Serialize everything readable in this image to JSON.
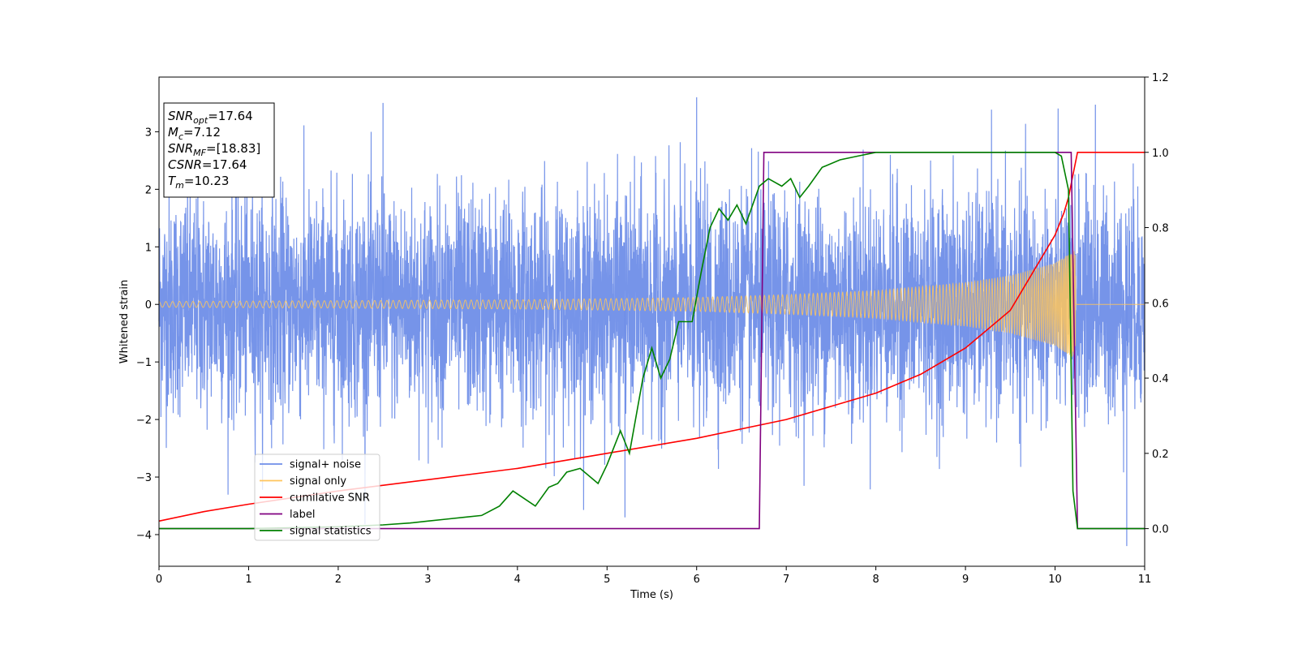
{
  "chart_data": {
    "type": "line",
    "xlabel": "Time (s)",
    "ylabel": "Whitened strain",
    "xlim": [
      0,
      11
    ],
    "ylim": [
      -4.55,
      3.95
    ],
    "y2lim": [
      -0.1,
      1.2
    ],
    "x_ticks": [
      0,
      1,
      2,
      3,
      4,
      5,
      6,
      7,
      8,
      9,
      10,
      11
    ],
    "y_ticks": [
      -4,
      -3,
      -2,
      -1,
      0,
      1,
      2,
      3
    ],
    "y2_ticks": [
      0.0,
      0.2,
      0.4,
      0.6,
      0.8,
      1.0,
      1.2
    ],
    "y2_tick_labels": [
      "0.0",
      "0.2",
      "0.4",
      "0.6",
      "0.8",
      "1.0",
      "1.2"
    ],
    "grid": false,
    "legend_position": "lower-left",
    "info_box": {
      "lines": [
        {
          "sym": "SNR",
          "sub": "opt",
          "value": "=17.64"
        },
        {
          "sym": "M",
          "sub": "c",
          "value": "=7.12"
        },
        {
          "sym": "SNR",
          "sub": "MF",
          "value": "=[18.83]"
        },
        {
          "sym": "CSNR",
          "sub": "",
          "value": "=17.64"
        },
        {
          "sym": "T",
          "sub": "m",
          "value": "=10.23"
        }
      ]
    },
    "series": [
      {
        "name": "signal+ noise",
        "color": "#6f8ee8",
        "axis": "left",
        "description_range": [
          -4.2,
          3.6
        ],
        "peaks": [
          [
            2.5,
            3.5
          ],
          [
            5.2,
            -3.7
          ],
          [
            6.0,
            3.6
          ],
          [
            10.45,
            3.47
          ],
          [
            10.8,
            -4.2
          ]
        ]
      },
      {
        "name": "signal only",
        "color": "#ffc55c",
        "axis": "left",
        "amplitude": [
          [
            0,
            0.05
          ],
          [
            4,
            0.08
          ],
          [
            6,
            0.12
          ],
          [
            7,
            0.17
          ],
          [
            8,
            0.24
          ],
          [
            9,
            0.38
          ],
          [
            9.5,
            0.5
          ],
          [
            10,
            0.72
          ],
          [
            10.23,
            0.95
          ]
        ]
      },
      {
        "name": "cumilative SNR",
        "color": "#ff0000",
        "axis": "right",
        "x": [
          0,
          0.5,
          1,
          2,
          3,
          4,
          5,
          6,
          7,
          7.5,
          8,
          8.5,
          9,
          9.5,
          10,
          10.1,
          10.15,
          10.2,
          10.25,
          11
        ],
        "y": [
          0.02,
          0.045,
          0.065,
          0.1,
          0.13,
          0.16,
          0.2,
          0.24,
          0.29,
          0.325,
          0.36,
          0.41,
          0.48,
          0.58,
          0.78,
          0.84,
          0.88,
          0.94,
          1.0,
          1.0
        ]
      },
      {
        "name": "label",
        "color": "#800080",
        "axis": "right",
        "x": [
          0,
          6.7,
          6.75,
          10.18,
          10.25,
          11
        ],
        "y": [
          0,
          0,
          1,
          1,
          0,
          0
        ]
      },
      {
        "name": "signal statistics",
        "color": "#008000",
        "axis": "right",
        "x": [
          0,
          1,
          2,
          2.5,
          2.8,
          3,
          3.2,
          3.4,
          3.6,
          3.8,
          3.95,
          4.2,
          4.35,
          4.45,
          4.55,
          4.7,
          4.9,
          5.0,
          5.15,
          5.25,
          5.4,
          5.5,
          5.6,
          5.7,
          5.8,
          5.95,
          6.05,
          6.15,
          6.25,
          6.35,
          6.45,
          6.55,
          6.7,
          6.8,
          6.95,
          7.05,
          7.15,
          7.25,
          7.4,
          7.6,
          7.8,
          8.0,
          8.5,
          9.0,
          9.5,
          10.0,
          10.07,
          10.15,
          10.2,
          10.25,
          11
        ],
        "y": [
          0,
          0,
          0.005,
          0.01,
          0.015,
          0.02,
          0.025,
          0.03,
          0.035,
          0.06,
          0.1,
          0.06,
          0.11,
          0.12,
          0.15,
          0.16,
          0.12,
          0.17,
          0.26,
          0.2,
          0.4,
          0.48,
          0.4,
          0.45,
          0.55,
          0.55,
          0.68,
          0.8,
          0.85,
          0.82,
          0.86,
          0.81,
          0.91,
          0.93,
          0.91,
          0.93,
          0.88,
          0.91,
          0.96,
          0.98,
          0.99,
          1.0,
          1.0,
          1.0,
          1.0,
          1.0,
          0.99,
          0.9,
          0.1,
          0.0,
          0.0
        ]
      }
    ]
  }
}
